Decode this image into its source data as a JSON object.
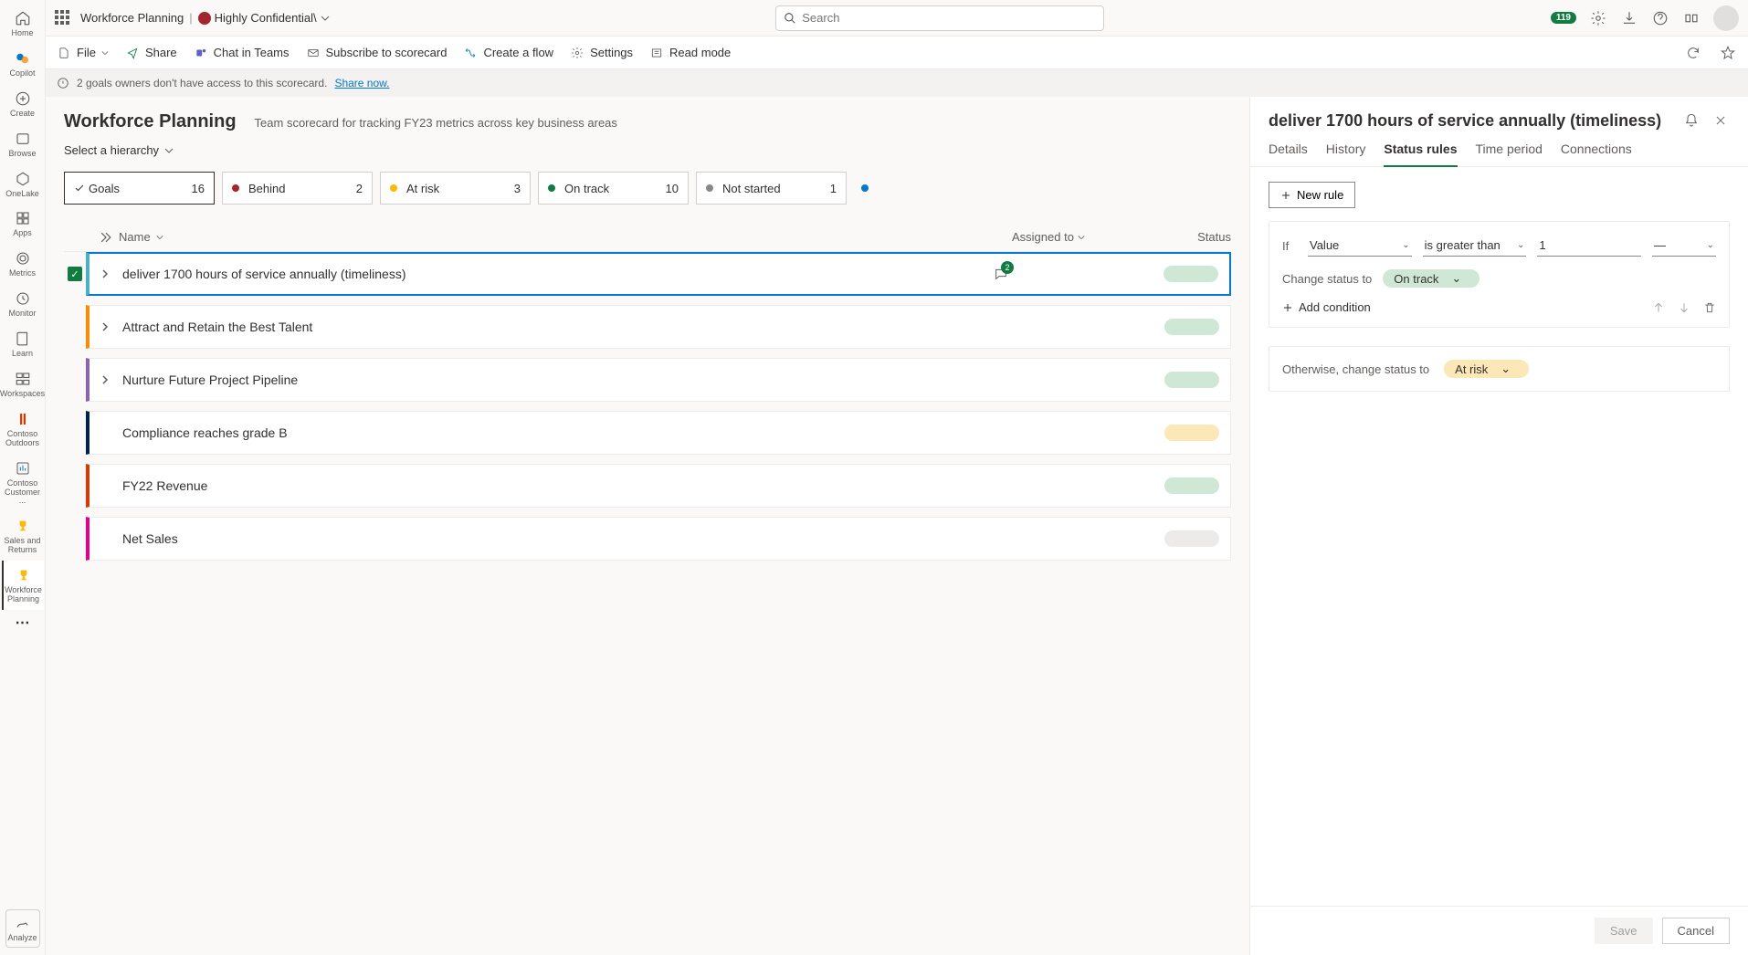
{
  "colors": {
    "behind": "#a4262c",
    "atrisk": "#ffb900",
    "ontrack": "#107c41",
    "notstarted": "#8a8886",
    "completed": "#0078d4",
    "pill_ontrack": "#cfe8d5",
    "pill_atrisk": "#fce8b6",
    "pill_neutral": "#edebe9"
  },
  "topbar": {
    "breadcrumb": "Workforce Planning",
    "sensitivity": "Highly Confidential\\",
    "search_placeholder": "Search",
    "notif_count": "119"
  },
  "rail": {
    "home": "Home",
    "copilot": "Copilot",
    "create": "Create",
    "browse": "Browse",
    "onelake": "OneLake",
    "apps": "Apps",
    "metrics": "Metrics",
    "monitor": "Monitor",
    "learn": "Learn",
    "workspaces": "Workspaces",
    "ws1": "Contoso Outdoors",
    "ws2": "Contoso Customer ...",
    "ws3": "Sales and Returns",
    "ws4": "Workforce Planning",
    "analyze": "Analyze"
  },
  "cmd": {
    "file": "File",
    "share": "Share",
    "chat": "Chat in Teams",
    "subscribe": "Subscribe to scorecard",
    "flow": "Create a flow",
    "settings": "Settings",
    "readmode": "Read mode"
  },
  "warn": {
    "text": "2 goals owners don't have access to this scorecard.",
    "link": "Share now."
  },
  "scorecard": {
    "title": "Workforce Planning",
    "desc": "Team scorecard for tracking FY23 metrics across key business areas",
    "hierarchy": "Select a hierarchy"
  },
  "tiles": [
    {
      "label": "Goals",
      "count": "16",
      "type": "check"
    },
    {
      "label": "Behind",
      "count": "2",
      "color": "#a4262c"
    },
    {
      "label": "At risk",
      "count": "3",
      "color": "#ffb900"
    },
    {
      "label": "On track",
      "count": "10",
      "color": "#107c41"
    },
    {
      "label": "Not started",
      "count": "1",
      "color": "#8a8886"
    }
  ],
  "columns": {
    "name": "Name",
    "assigned": "Assigned to",
    "status": "Status"
  },
  "goals": [
    {
      "name": "deliver 1700 hours of service annually (timeliness)",
      "stripe": "#46b1c9",
      "selected": true,
      "checked": true,
      "expandable": true,
      "comments": "2",
      "pill": "#cfe8d5"
    },
    {
      "name": "Attract and Retain the Best Talent",
      "stripe": "#ff8c00",
      "expandable": true,
      "pill": "#cfe8d5"
    },
    {
      "name": "Nurture Future Project Pipeline",
      "stripe": "#8764b8",
      "expandable": true,
      "pill": "#cfe8d5"
    },
    {
      "name": "Compliance reaches grade B",
      "stripe": "#002050",
      "pill": "#fce8b6"
    },
    {
      "name": "FY22 Revenue",
      "stripe": "#d83b01",
      "pill": "#cfe8d5"
    },
    {
      "name": "Net Sales",
      "stripe": "#e3008c",
      "pill": "#edebe9"
    }
  ],
  "panel": {
    "title": "deliver 1700 hours of service annually (timeliness)",
    "tabs": {
      "details": "Details",
      "history": "History",
      "rules": "Status rules",
      "period": "Time period",
      "connections": "Connections"
    },
    "new_rule": "New rule",
    "rule": {
      "if": "If",
      "field": "Value",
      "op": "is greater than",
      "val": "1",
      "unit": "—",
      "change_to": "Change status to",
      "status": "On track",
      "add_cond": "Add condition"
    },
    "otherwise": {
      "label": "Otherwise, change status to",
      "status": "At risk"
    },
    "save": "Save",
    "cancel": "Cancel"
  }
}
